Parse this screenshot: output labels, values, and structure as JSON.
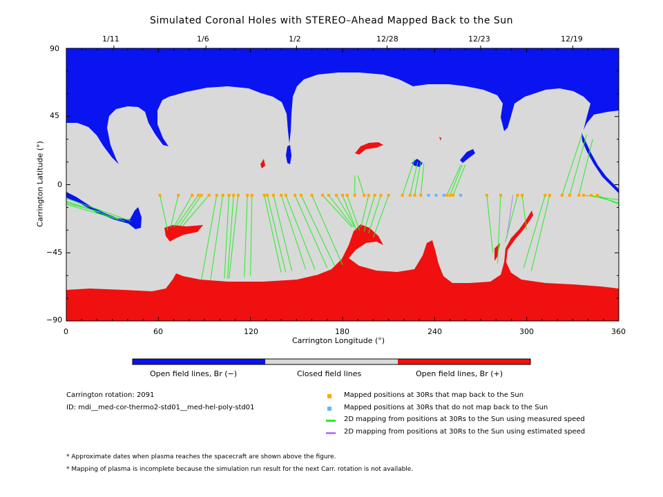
{
  "title": "Simulated Coronal Holes with STEREO–Ahead Mapped Back to the Sun",
  "top_dates": [
    "1/11",
    "1/6",
    "1/2",
    "12/28",
    "12/23",
    "12/19"
  ],
  "colors": {
    "open_negative": "#0a14f0",
    "closed": "#d9d9d9",
    "open_positive": "#f01010",
    "mapped_back": "#ffa500",
    "not_mapped": "#6ab4f0",
    "measured_speed": "#22ee22",
    "estimated_speed": "#b080f0"
  },
  "chart_data": {
    "type": "heatmap",
    "xlabel": "Carrington Longitude (°)",
    "ylabel": "Carrington Latitude (°)",
    "xlim": [
      0,
      360
    ],
    "ylim": [
      -90,
      90
    ],
    "x_ticks": [
      "0",
      "60",
      "120",
      "180",
      "240",
      "300",
      "360"
    ],
    "y_ticks": [
      "90",
      "45",
      "0",
      "−45",
      "−90"
    ],
    "top_date_longitudes": [
      31,
      91,
      150,
      209,
      270,
      330
    ],
    "mapped_latitude": -7,
    "mapped_longitudes": [
      61,
      73,
      82,
      86,
      88,
      93,
      98,
      102,
      106,
      109,
      112,
      118,
      121,
      129,
      131,
      135,
      140,
      143,
      149,
      153,
      160,
      167,
      171,
      176,
      180,
      183,
      188,
      194,
      197,
      201,
      205,
      210,
      219,
      224,
      227,
      231,
      248,
      250,
      252,
      274,
      283,
      294,
      297,
      312,
      315,
      323,
      328,
      334,
      337,
      342,
      346
    ],
    "not_mapped_longitudes": [
      236,
      241,
      246,
      257
    ],
    "measured_lines": [
      [
        61,
        -7,
        66,
        -30
      ],
      [
        73,
        -7,
        68,
        -28
      ],
      [
        82,
        -7,
        70,
        -28
      ],
      [
        86,
        -7,
        72,
        -27
      ],
      [
        88,
        -7,
        74,
        -27
      ],
      [
        93,
        -7,
        76,
        -27
      ],
      [
        98,
        -7,
        88,
        -63
      ],
      [
        102,
        -7,
        94,
        -63
      ],
      [
        106,
        -7,
        103,
        -62
      ],
      [
        109,
        -7,
        105,
        -62
      ],
      [
        112,
        -7,
        106,
        -62
      ],
      [
        118,
        -7,
        116,
        -61
      ],
      [
        121,
        -7,
        120,
        -60
      ],
      [
        129,
        -7,
        140,
        -58
      ],
      [
        131,
        -7,
        143,
        -58
      ],
      [
        135,
        -7,
        147,
        -57
      ],
      [
        140,
        -7,
        156,
        -56
      ],
      [
        143,
        -7,
        162,
        -56
      ],
      [
        149,
        -7,
        170,
        -55
      ],
      [
        153,
        -7,
        175,
        -54
      ],
      [
        160,
        -7,
        180,
        -53
      ],
      [
        167,
        -7,
        186,
        -28
      ],
      [
        171,
        -7,
        187,
        -28
      ],
      [
        176,
        -7,
        188,
        -28
      ],
      [
        180,
        -7,
        189,
        -30
      ],
      [
        183,
        -7,
        191,
        -30
      ],
      [
        188,
        -7,
        188,
        6
      ],
      [
        194,
        -7,
        190,
        6
      ],
      [
        197,
        -7,
        192,
        -28
      ],
      [
        201,
        -7,
        194,
        -31
      ],
      [
        205,
        -7,
        197,
        -32
      ],
      [
        210,
        -7,
        200,
        -35
      ],
      [
        219,
        -7,
        227,
        17
      ],
      [
        224,
        -7,
        229,
        15
      ],
      [
        227,
        -7,
        231,
        15
      ],
      [
        231,
        -7,
        233,
        14
      ],
      [
        248,
        -7,
        257,
        13
      ],
      [
        250,
        -7,
        258,
        13
      ],
      [
        252,
        -7,
        260,
        13
      ],
      [
        274,
        -7,
        278,
        -45
      ],
      [
        283,
        -7,
        281,
        -52
      ],
      [
        294,
        -7,
        286,
        -38
      ],
      [
        297,
        -7,
        300,
        -30
      ],
      [
        312,
        -7,
        298,
        -55
      ],
      [
        315,
        -7,
        303,
        -57
      ],
      [
        323,
        -7,
        336,
        33
      ],
      [
        328,
        -7,
        339,
        33
      ],
      [
        334,
        -7,
        343,
        30
      ],
      [
        337,
        -7,
        360,
        -10
      ],
      [
        342,
        -7,
        360,
        -12
      ],
      [
        346,
        -7,
        360,
        -13
      ],
      [
        0,
        -9,
        42,
        -24
      ],
      [
        0,
        -11,
        38,
        -24
      ],
      [
        0,
        -13,
        34,
        -23
      ],
      [
        0,
        -12,
        22,
        -18
      ]
    ],
    "estimated_lines": [
      [
        291,
        -7,
        287,
        -35
      ]
    ]
  },
  "colorbar": {
    "labels": [
      "Open field lines, Br (−)",
      "Closed field lines",
      "Open field lines, Br (+)"
    ]
  },
  "info": {
    "rotation": "Carrington rotation: 2091",
    "id": "ID: mdi__med-cor-thermo2-std01__med-hel-poly-std01"
  },
  "legend": [
    {
      "text": "Mapped positions at 30Rs that map back to the Sun",
      "kind": "mapped_back"
    },
    {
      "text": "Mapped positions at 30Rs that do not map back to the Sun",
      "kind": "not_mapped"
    },
    {
      "text": "2D mapping from positions at 30Rs to the Sun using measured speed",
      "kind": "measured_speed"
    },
    {
      "text": "2D mapping from positions at 30Rs to the Sun using estimated speed",
      "kind": "estimated_speed"
    }
  ],
  "notes": [
    "* Approximate dates when plasma reaches the spacecraft are shown above the figure.",
    "* Mapping of plasma is incomplete because the simulation run result for the next Carr. rotation is not available."
  ]
}
